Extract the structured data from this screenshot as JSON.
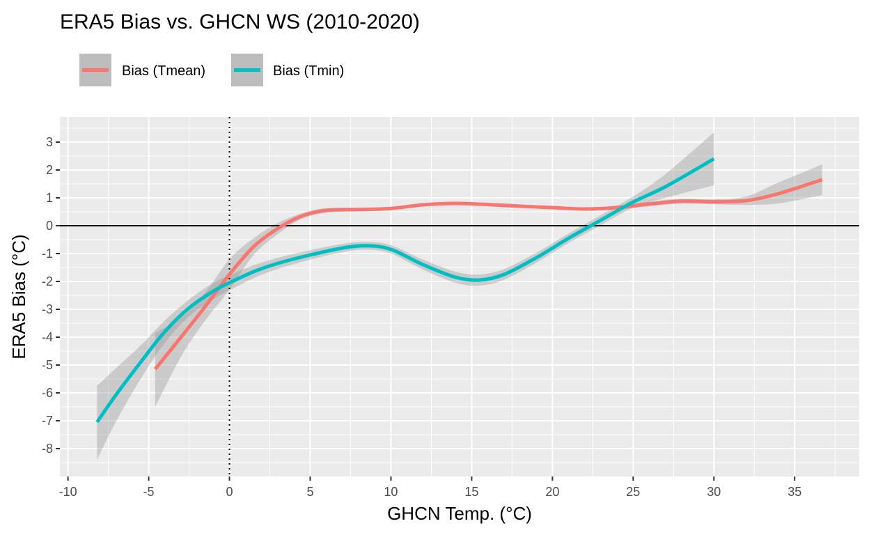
{
  "chart_data": {
    "type": "line",
    "title": "ERA5 Bias vs. GHCN WS (2010-2020)",
    "xlabel": "GHCN Temp. (°C)",
    "ylabel": "ERA5 Bias (°C)",
    "xlim": [
      -10.5,
      39
    ],
    "ylim": [
      -9,
      3.9
    ],
    "xticks": [
      -10,
      -5,
      0,
      5,
      10,
      15,
      20,
      25,
      30,
      35
    ],
    "xtick_labels": [
      "-10",
      "-5",
      "0",
      "5",
      "10",
      "15",
      "20",
      "25",
      "30",
      "35"
    ],
    "yticks": [
      3,
      2,
      1,
      0,
      -1,
      -2,
      -3,
      -4,
      -5,
      -6,
      -7,
      -8
    ],
    "ytick_labels": [
      "3",
      "2",
      "1",
      "0",
      "-1",
      "-2",
      "-3",
      "-4",
      "-5",
      "-6",
      "-7",
      "-8"
    ],
    "grid": true,
    "background": "#ebebeb",
    "hline_y": 0,
    "vline_x": 0,
    "legend_position": "top-left",
    "series": [
      {
        "name": "Bias (Tmean)",
        "color": "#f8766d",
        "x": [
          -4.6,
          -3,
          -1.5,
          0,
          1.5,
          3,
          4.5,
          6,
          8,
          10,
          12,
          14,
          16,
          18,
          20,
          22,
          24,
          26,
          28,
          30,
          32,
          34,
          36.7
        ],
        "y": [
          -5.15,
          -4.0,
          -2.9,
          -1.75,
          -0.75,
          -0.1,
          0.35,
          0.55,
          0.58,
          0.62,
          0.75,
          0.8,
          0.76,
          0.7,
          0.65,
          0.6,
          0.65,
          0.78,
          0.88,
          0.86,
          0.9,
          1.15,
          1.65
        ],
        "ci_upper": [
          -3.85,
          -3.3,
          -2.4,
          -1.2,
          -0.45,
          0.1,
          0.45,
          0.63,
          0.64,
          0.67,
          0.8,
          0.85,
          0.8,
          0.74,
          0.69,
          0.65,
          0.72,
          0.86,
          0.97,
          0.95,
          1.05,
          1.55,
          2.2
        ],
        "ci_lower": [
          -6.5,
          -4.7,
          -3.4,
          -2.3,
          -1.05,
          -0.3,
          0.25,
          0.47,
          0.52,
          0.57,
          0.7,
          0.75,
          0.72,
          0.66,
          0.61,
          0.55,
          0.58,
          0.7,
          0.79,
          0.77,
          0.75,
          0.8,
          1.1
        ]
      },
      {
        "name": "Bias (Tmin)",
        "color": "#00bfc4",
        "x": [
          -8.2,
          -7,
          -5.5,
          -4,
          -2.5,
          -1,
          0,
          1.5,
          3,
          5,
          7,
          8.5,
          10,
          12,
          14,
          15.5,
          17,
          19,
          21,
          23,
          25,
          27,
          30
        ],
        "y": [
          -7.05,
          -6.05,
          -4.9,
          -3.8,
          -2.95,
          -2.35,
          -2.05,
          -1.65,
          -1.35,
          -1.05,
          -0.8,
          -0.72,
          -0.85,
          -1.4,
          -1.85,
          -1.95,
          -1.75,
          -1.15,
          -0.45,
          0.2,
          0.85,
          1.4,
          2.4
        ],
        "ci_upper": [
          -5.75,
          -5.1,
          -4.3,
          -3.4,
          -2.65,
          -2.05,
          -1.78,
          -1.42,
          -1.15,
          -0.88,
          -0.65,
          -0.58,
          -0.7,
          -1.22,
          -1.65,
          -1.75,
          -1.56,
          -0.97,
          -0.28,
          0.38,
          1.05,
          1.85,
          3.35
        ],
        "ci_lower": [
          -8.4,
          -7.0,
          -5.5,
          -4.2,
          -3.25,
          -2.65,
          -2.32,
          -1.88,
          -1.55,
          -1.22,
          -0.95,
          -0.86,
          -1.0,
          -1.58,
          -2.05,
          -2.15,
          -1.94,
          -1.33,
          -0.62,
          0.02,
          0.65,
          1.0,
          1.45
        ]
      }
    ]
  }
}
